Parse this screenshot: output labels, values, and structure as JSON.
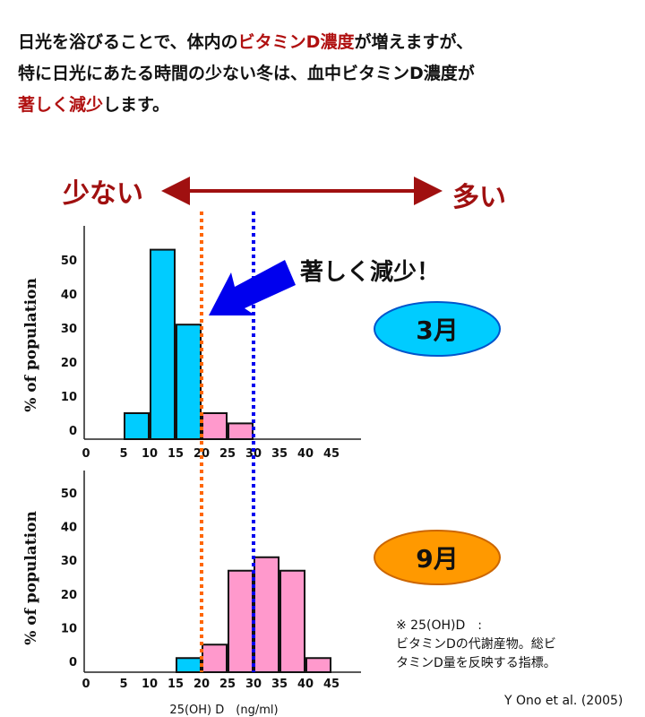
{
  "headline": {
    "line1": [
      {
        "t": "日光を浴びることで、体内の",
        "red": false
      },
      {
        "t": "ビタミンD濃度",
        "red": true
      },
      {
        "t": "が増えますが、",
        "red": false
      }
    ],
    "line2": [
      {
        "t": "特に日光にあたる時間の少ない冬は、血中ビタミンD濃度が",
        "red": false
      }
    ],
    "line3": [
      {
        "t": "著しく減少",
        "red": true
      },
      {
        "t": "します。",
        "red": false
      }
    ]
  },
  "scale_arrow": {
    "left_label": "少ない",
    "right_label": "多い"
  },
  "callout": "著しく減少！",
  "colors": {
    "low": "#00ccff",
    "high": "#ff99cc",
    "threshold_20": "#ff6600",
    "threshold_30": "#0000ee",
    "accent": "#a01010",
    "march_badge": "#00ccff",
    "september_badge": "#ff9900"
  },
  "chart_data": [
    {
      "type": "bar",
      "badge": "3月",
      "ylabel": "% of population",
      "xlabel": "",
      "x_ticks": [
        "0",
        "5",
        "10",
        "15",
        "20",
        "25",
        "30",
        "35",
        "40",
        "45"
      ],
      "y_ticks": [
        "0",
        "10",
        "20",
        "30",
        "40",
        "50"
      ],
      "bins": [
        [
          5,
          10
        ],
        [
          10,
          15
        ],
        [
          15,
          20
        ],
        [
          20,
          25
        ],
        [
          25,
          30
        ]
      ],
      "values": [
        5,
        53,
        31,
        5,
        2
      ],
      "thresholds": [
        20,
        30
      ]
    },
    {
      "type": "bar",
      "badge": "9月",
      "ylabel": "% of population",
      "xlabel": "25(OH) D　(ng/ml)",
      "x_ticks": [
        "0",
        "5",
        "10",
        "15",
        "20",
        "25",
        "30",
        "35",
        "40",
        "45"
      ],
      "y_ticks": [
        "0",
        "10",
        "20",
        "30",
        "40",
        "50"
      ],
      "bins": [
        [
          15,
          20
        ],
        [
          20,
          25
        ],
        [
          25,
          30
        ],
        [
          30,
          35
        ],
        [
          35,
          40
        ],
        [
          40,
          45
        ]
      ],
      "values": [
        1,
        5,
        27,
        31,
        27,
        1
      ],
      "thresholds": [
        20,
        30
      ]
    }
  ],
  "footnote": {
    "line1": "※ 25(OH)D　:",
    "line2": "ビタミンDの代謝産物。総ビ",
    "line3": "タミンD量を反映する指標。"
  },
  "citation": "Y Ono et al. (2005)"
}
